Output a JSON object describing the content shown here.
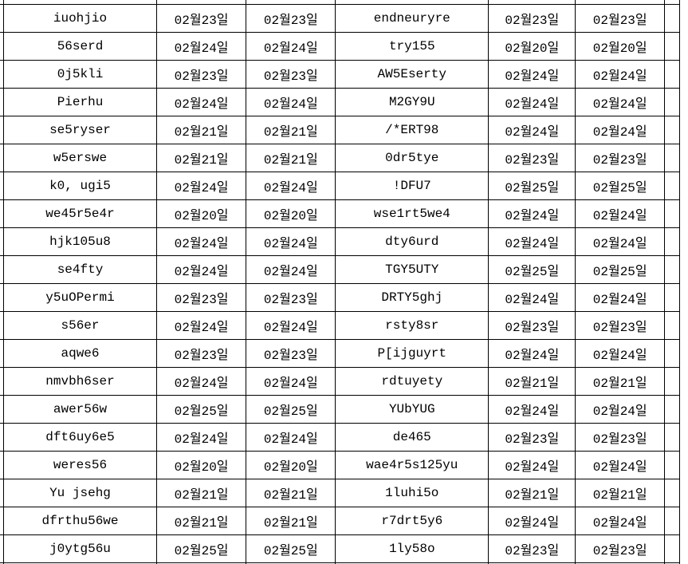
{
  "colors": {
    "background": "#ffffff",
    "border": "#000000",
    "text": "#000000"
  },
  "table": {
    "column_types": [
      "name",
      "date",
      "date",
      "name",
      "date",
      "date"
    ],
    "rows": [
      [
        "iuohjio",
        "02월23일",
        "02월23일",
        "endneuryre",
        "02월23일",
        "02월23일"
      ],
      [
        "56serd",
        "02월24일",
        "02월24일",
        "try155",
        "02월20일",
        "02월20일"
      ],
      [
        "0j5kli",
        "02월23일",
        "02월23일",
        "AW5Eserty",
        "02월24일",
        "02월24일"
      ],
      [
        "Pierhu",
        "02월24일",
        "02월24일",
        "M2GY9U",
        "02월24일",
        "02월24일"
      ],
      [
        "se5ryser",
        "02월21일",
        "02월21일",
        "/*ERT98",
        "02월24일",
        "02월24일"
      ],
      [
        "w5erswe",
        "02월21일",
        "02월21일",
        "0dr5tye",
        "02월23일",
        "02월23일"
      ],
      [
        "k0, ugi5",
        "02월24일",
        "02월24일",
        "!DFU7",
        "02월25일",
        "02월25일"
      ],
      [
        "we45r5e4r",
        "02월20일",
        "02월20일",
        "wse1rt5we4",
        "02월24일",
        "02월24일"
      ],
      [
        "hjk105u8",
        "02월24일",
        "02월24일",
        "dty6urd",
        "02월24일",
        "02월24일"
      ],
      [
        "se4fty",
        "02월24일",
        "02월24일",
        "TGY5UTY",
        "02월25일",
        "02월25일"
      ],
      [
        "y5uOPermi",
        "02월23일",
        "02월23일",
        "DRTY5ghj",
        "02월24일",
        "02월24일"
      ],
      [
        "s56er",
        "02월24일",
        "02월24일",
        "rsty8sr",
        "02월23일",
        "02월23일"
      ],
      [
        "aqwe6",
        "02월23일",
        "02월23일",
        "P[ijguyrt",
        "02월24일",
        "02월24일"
      ],
      [
        "nmvbh6ser",
        "02월24일",
        "02월24일",
        "rdtuyety",
        "02월21일",
        "02월21일"
      ],
      [
        "awer56w",
        "02월25일",
        "02월25일",
        "YUbYUG",
        "02월24일",
        "02월24일"
      ],
      [
        "dft6uy6e5",
        "02월24일",
        "02월24일",
        "de465",
        "02월23일",
        "02월23일"
      ],
      [
        "weres56",
        "02월20일",
        "02월20일",
        "wae4r5s125yu",
        "02월24일",
        "02월24일"
      ],
      [
        "Yu jsehg",
        "02월21일",
        "02월21일",
        "1luhi5o",
        "02월21일",
        "02월21일"
      ],
      [
        "dfrthu56we",
        "02월21일",
        "02월21일",
        "r7drt5y6",
        "02월24일",
        "02월24일"
      ],
      [
        "j0ytg56u",
        "02월25일",
        "02월25일",
        "1ly58o",
        "02월23일",
        "02월23일"
      ]
    ]
  }
}
